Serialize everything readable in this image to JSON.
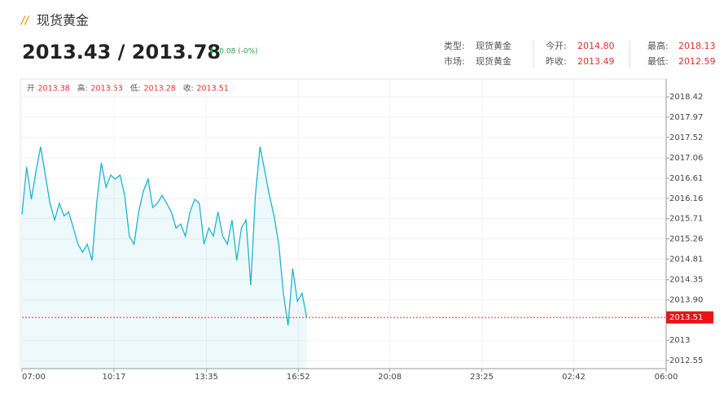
{
  "header": {
    "title": "现货黄金",
    "price": "2013.43 / 2013.78",
    "change": "-0.08 (-0%)",
    "info": [
      [
        {
          "label": "类型:",
          "value": "现货黄金"
        },
        {
          "label": "今开:",
          "value": "2014.80"
        },
        {
          "label": "最高:",
          "value": "2018.13"
        }
      ],
      [
        {
          "label": "市场:",
          "value": "现货黄金"
        },
        {
          "label": "昨收:",
          "value": "2013.49"
        },
        {
          "label": "最低:",
          "value": "2012.59"
        }
      ]
    ]
  },
  "ohlc": [
    {
      "label": "开",
      "value": "2013.38"
    },
    {
      "label": "高:",
      "value": "2013.53"
    },
    {
      "label": "低:",
      "value": "2013.28"
    },
    {
      "label": "收:",
      "value": "2013.51"
    }
  ],
  "chart_data": {
    "type": "line",
    "x": [
      "07:00",
      "07:10",
      "07:20",
      "07:30",
      "07:40",
      "07:50",
      "08:00",
      "08:10",
      "08:20",
      "08:30",
      "08:40",
      "08:50",
      "09:00",
      "09:10",
      "09:20",
      "09:30",
      "09:40",
      "09:50",
      "10:00",
      "10:10",
      "10:20",
      "10:30",
      "10:40",
      "10:50",
      "11:00",
      "11:10",
      "11:20",
      "11:30",
      "11:40",
      "11:50",
      "12:00",
      "12:10",
      "12:20",
      "12:30",
      "12:40",
      "12:50",
      "13:00",
      "13:10",
      "13:20",
      "13:30",
      "13:40",
      "13:50",
      "14:00",
      "14:10",
      "14:20",
      "14:30",
      "14:40",
      "14:50",
      "15:00",
      "15:10",
      "15:20",
      "15:30",
      "15:40",
      "15:50",
      "16:00",
      "16:10",
      "16:20",
      "16:30",
      "16:40",
      "16:50",
      "17:00",
      "17:10"
    ],
    "series": [
      {
        "name": "现货黄金",
        "color": "#1fb3d1",
        "values": [
          2015.8,
          2016.86,
          2016.14,
          2016.77,
          2017.31,
          2016.68,
          2016.05,
          2015.68,
          2016.05,
          2015.77,
          2015.86,
          2015.5,
          2015.14,
          2014.96,
          2015.14,
          2014.78,
          2016.05,
          2016.95,
          2016.41,
          2016.68,
          2016.59,
          2016.68,
          2016.23,
          2015.32,
          2015.14,
          2015.86,
          2016.32,
          2016.59,
          2015.96,
          2016.05,
          2016.23,
          2016.05,
          2015.86,
          2015.5,
          2015.59,
          2015.32,
          2015.86,
          2016.14,
          2016.05,
          2015.14,
          2015.5,
          2015.32,
          2015.86,
          2015.32,
          2015.14,
          2015.68,
          2014.78,
          2015.5,
          2015.68,
          2014.23,
          2016.23,
          2017.31,
          2016.77,
          2016.23,
          2015.77,
          2015.14,
          2014.05,
          2013.33,
          2014.6,
          2013.87,
          2014.05,
          2013.51
        ]
      }
    ],
    "xlim": [
      "07:00",
      "06:00"
    ],
    "xticks": [
      "07:00",
      "10:17",
      "13:35",
      "16:52",
      "20:08",
      "23:25",
      "02:42",
      "06:00"
    ],
    "ylim": [
      2012.37,
      2018.82
    ],
    "yticks": [
      2018.42,
      2017.97,
      2017.52,
      2017.06,
      2016.61,
      2016.16,
      2015.71,
      2015.26,
      2014.81,
      2014.35,
      {
        "value": 2013.9,
        "label": "2013.90"
      },
      2013.0,
      2012.55
    ],
    "price_line": 2013.51,
    "grid": true
  }
}
